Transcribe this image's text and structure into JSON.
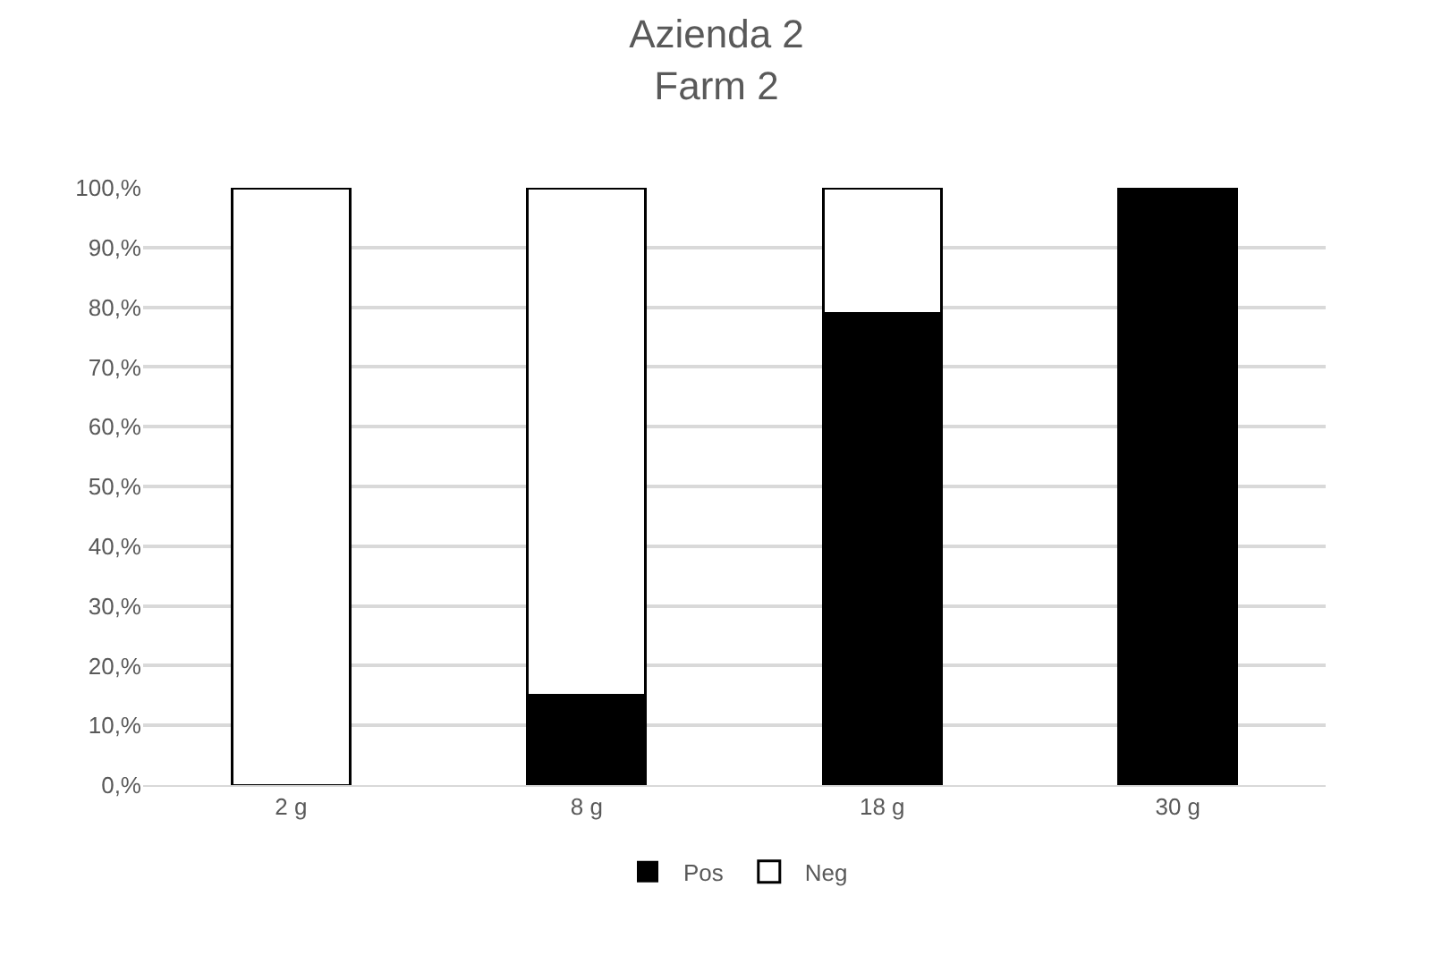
{
  "chart_data": {
    "type": "bar",
    "title": "Azienda 2\nFarm 2",
    "stacked": true,
    "categories": [
      "2 g",
      "8 g",
      "18 g",
      "30 g"
    ],
    "series": [
      {
        "name": "Pos",
        "color": "#000000",
        "values": [
          0,
          15,
          79,
          100
        ]
      },
      {
        "name": "Neg",
        "color": "#ffffff",
        "values": [
          100,
          85,
          21,
          0
        ]
      }
    ],
    "ylim": [
      0,
      100
    ],
    "yticks": [
      {
        "value": 0,
        "label": "0,%"
      },
      {
        "value": 10,
        "label": "10,%"
      },
      {
        "value": 20,
        "label": "20,%"
      },
      {
        "value": 30,
        "label": "30,%"
      },
      {
        "value": 40,
        "label": "40,%"
      },
      {
        "value": 50,
        "label": "50,%"
      },
      {
        "value": 60,
        "label": "60,%"
      },
      {
        "value": 70,
        "label": "70,%"
      },
      {
        "value": 80,
        "label": "80,%"
      },
      {
        "value": 90,
        "label": "90,%"
      },
      {
        "value": 100,
        "label": "100,%"
      }
    ],
    "grid": "y",
    "legend": "bottom"
  }
}
